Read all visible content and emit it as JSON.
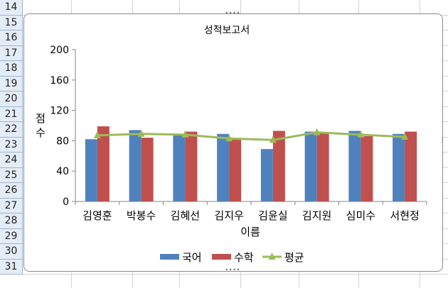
{
  "spreadsheet": {
    "row_numbers": [
      "14",
      "15",
      "16",
      "17",
      "18",
      "19",
      "20",
      "21",
      "22",
      "23",
      "24",
      "25",
      "26",
      "27",
      "28",
      "29",
      "30",
      "31"
    ]
  },
  "chart_data": {
    "type": "bar",
    "title": "성적보고서",
    "xlabel": "이름",
    "ylabel": "점수",
    "ylim": [
      0,
      200
    ],
    "yticks": [
      "0",
      "40",
      "80",
      "120",
      "160",
      "200"
    ],
    "categories": [
      "김영훈",
      "박봉수",
      "김혜선",
      "김지우",
      "김윤실",
      "김지원",
      "심미수",
      "서현정"
    ],
    "series": [
      {
        "name": "국어",
        "type": "bar",
        "color": "#4f81bd",
        "values": [
          82,
          94,
          88,
          89,
          69,
          92,
          93,
          89
        ]
      },
      {
        "name": "수학",
        "type": "bar",
        "color": "#c0504d",
        "values": [
          99,
          84,
          92,
          82,
          93,
          91,
          86,
          92
        ]
      },
      {
        "name": "평균",
        "type": "line",
        "color": "#9bbb59",
        "values": [
          87,
          89,
          88,
          83,
          81,
          91,
          88,
          85
        ]
      }
    ],
    "legend_position": "bottom",
    "grid": false
  }
}
